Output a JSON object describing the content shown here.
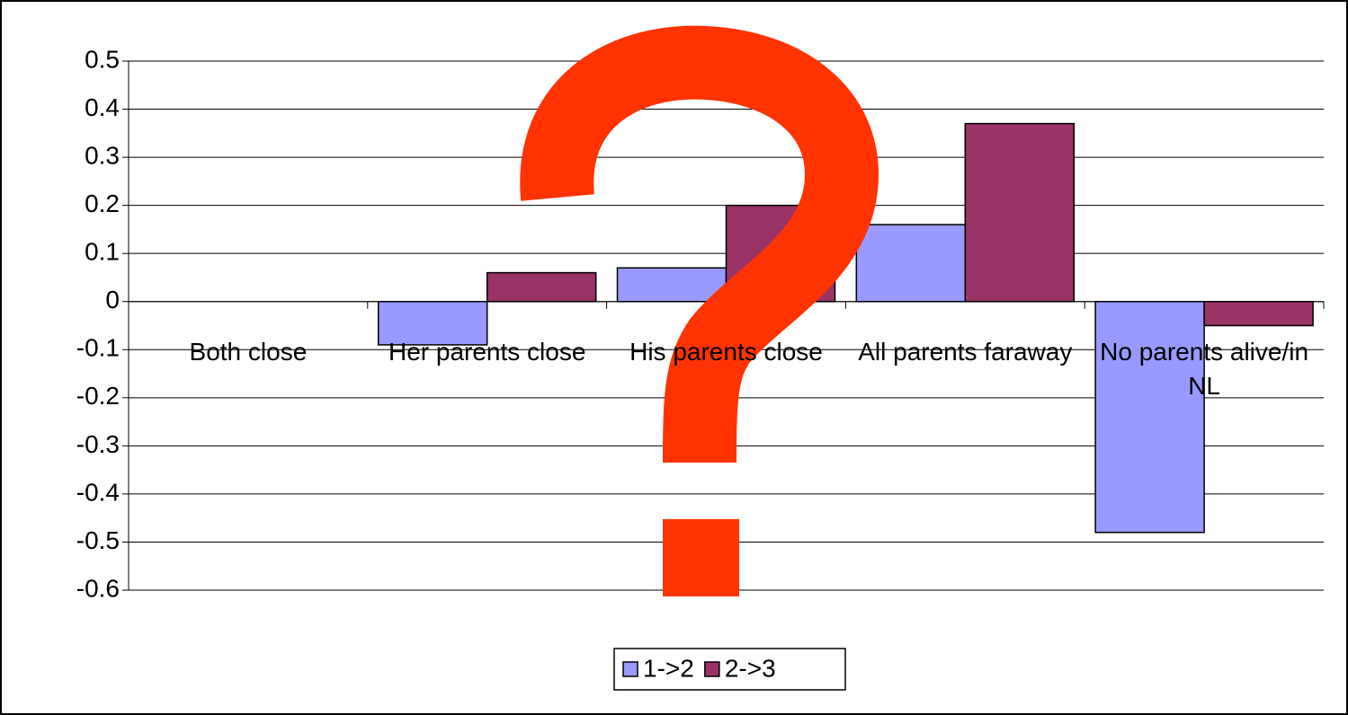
{
  "chart_data": {
    "type": "bar",
    "categories": [
      "Both close",
      "Her parents close",
      "His parents close",
      "All parents faraway",
      "No parents alive/in NL"
    ],
    "series": [
      {
        "name": "1->2",
        "color": "#9999ff",
        "values": [
          0,
          -0.09,
          0.07,
          0.16,
          -0.48
        ]
      },
      {
        "name": "2->3",
        "color": "#993366",
        "values": [
          0,
          0.06,
          0.2,
          0.37,
          -0.05
        ]
      }
    ],
    "ylim": [
      -0.6,
      0.5
    ],
    "yticks": [
      0.5,
      0.4,
      0.3,
      0.2,
      0.1,
      0,
      -0.1,
      -0.2,
      -0.3,
      -0.4,
      -0.5,
      -0.6
    ],
    "grid": true,
    "legend": "bottom"
  }
}
